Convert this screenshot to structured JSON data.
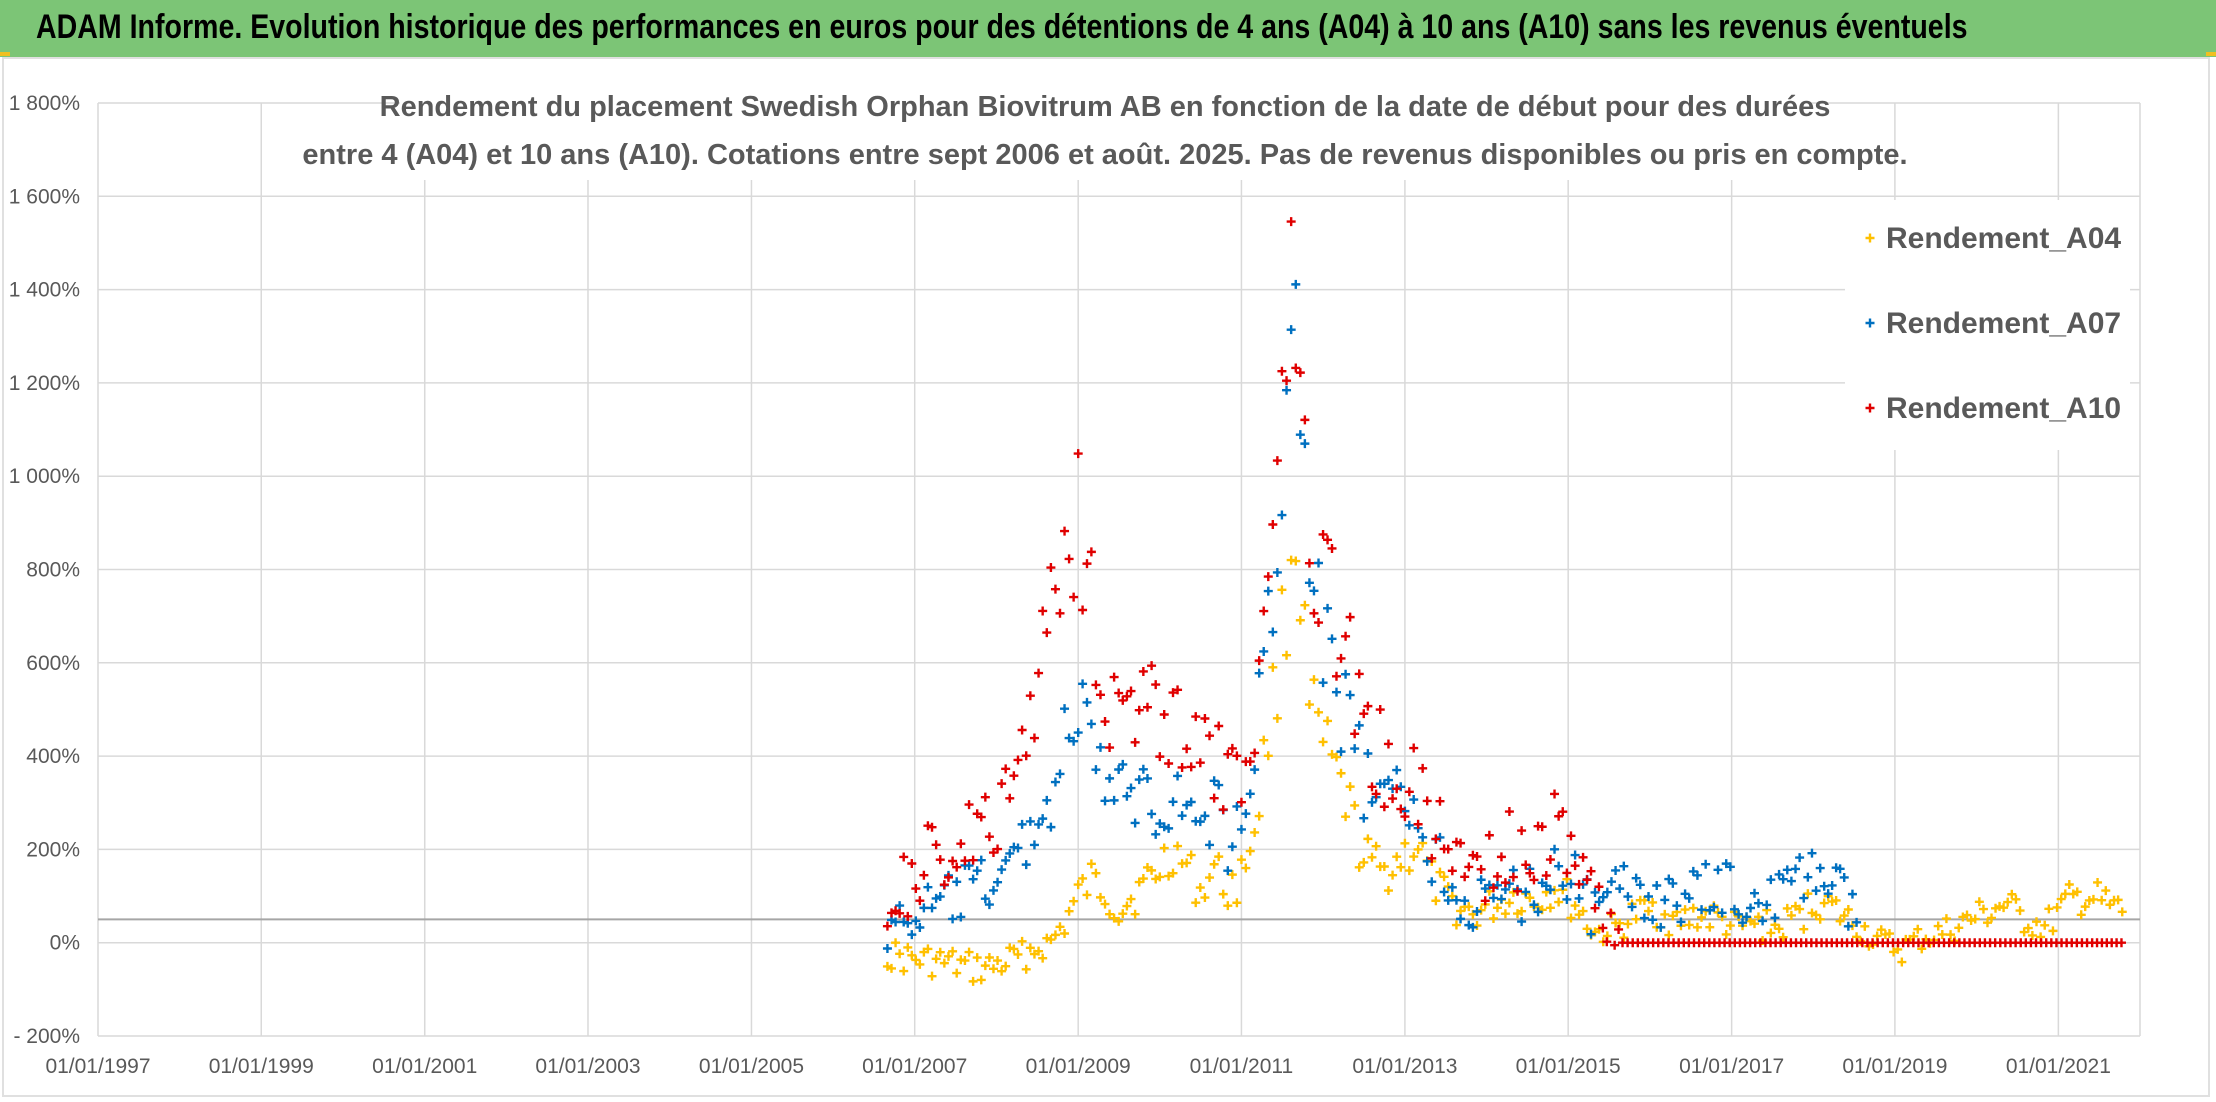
{
  "banner": {
    "title": "ADAM Informe. Evolution historique des performances en euros pour des détentions de 4 ans (A04) à 10 ans (A10) sans les revenus éventuels"
  },
  "colors": {
    "banner": "#7cc576",
    "A04": "#ffc000",
    "A07": "#0070c0",
    "A10": "#e00000",
    "grid": "#d9d9d9",
    "baseline": "#a6a6a6",
    "text": "#595959"
  },
  "chart_data": {
    "type": "scatter",
    "title_lines": [
      "Rendement du placement Swedish Orphan Biovitrum AB en fonction de la date de début pour des durées",
      "entre 4 (A04) et 10 ans (A10). Cotations entre sept 2006 et août. 2025. Pas de revenus disponibles ou pris en compte."
    ],
    "xlabel": "",
    "ylabel": "",
    "marker": "+",
    "x_ticks": [
      "01/01/1997",
      "01/01/1999",
      "01/01/2001",
      "01/01/2003",
      "01/01/2005",
      "01/01/2007",
      "01/01/2009",
      "01/01/2011",
      "01/01/2013",
      "01/01/2015",
      "01/01/2017",
      "01/01/2019",
      "01/01/2021"
    ],
    "x_range": [
      "1997-01-01",
      "2022-01-01"
    ],
    "y_ticks": [
      "- 200%",
      "0%",
      "200%",
      "400%",
      "600%",
      "800%",
      "1 000%",
      "1 200%",
      "1 400%",
      "1 600%",
      "1 800%"
    ],
    "y_range": [
      -200,
      1800
    ],
    "grid": true,
    "legend_position": "top-right",
    "series": [
      {
        "name": "Rendement_A04",
        "points": [
          [
            "2006-09-01",
            -25
          ],
          [
            "2006-12-01",
            -35
          ],
          [
            "2007-03-01",
            -40
          ],
          [
            "2007-06-01",
            -45
          ],
          [
            "2007-09-01",
            -55
          ],
          [
            "2007-12-01",
            -55
          ],
          [
            "2008-03-01",
            -40
          ],
          [
            "2008-06-01",
            -20
          ],
          [
            "2008-09-01",
            0
          ],
          [
            "2008-11-01",
            40
          ],
          [
            "2009-01-01",
            100
          ],
          [
            "2009-03-01",
            130
          ],
          [
            "2009-05-01",
            110
          ],
          [
            "2009-07-01",
            70
          ],
          [
            "2009-10-01",
            110
          ],
          [
            "2010-01-01",
            160
          ],
          [
            "2010-03-01",
            200
          ],
          [
            "2010-05-01",
            160
          ],
          [
            "2010-07-01",
            110
          ],
          [
            "2010-09-01",
            160
          ],
          [
            "2010-11-01",
            110
          ],
          [
            "2011-01-01",
            140
          ],
          [
            "2011-03-01",
            250
          ],
          [
            "2011-05-01",
            450
          ],
          [
            "2011-07-01",
            650
          ],
          [
            "2011-09-01",
            900
          ],
          [
            "2011-11-01",
            500
          ],
          [
            "2012-01-01",
            420
          ],
          [
            "2012-03-01",
            350
          ],
          [
            "2012-05-01",
            280
          ],
          [
            "2012-07-01",
            180
          ],
          [
            "2012-10-01",
            150
          ],
          [
            "2013-01-01",
            190
          ],
          [
            "2013-03-01",
            210
          ],
          [
            "2013-05-01",
            130
          ],
          [
            "2013-08-01",
            80
          ],
          [
            "2013-11-01",
            60
          ],
          [
            "2014-02-01",
            80
          ],
          [
            "2014-05-01",
            100
          ],
          [
            "2014-08-01",
            90
          ],
          [
            "2014-11-01",
            120
          ],
          [
            "2015-02-01",
            80
          ],
          [
            "2015-05-01",
            20
          ],
          [
            "2015-08-01",
            30
          ],
          [
            "2015-11-01",
            60
          ],
          [
            "2016-02-01",
            70
          ],
          [
            "2016-05-01",
            40
          ],
          [
            "2016-08-01",
            60
          ],
          [
            "2016-11-01",
            50
          ],
          [
            "2017-02-01",
            30
          ],
          [
            "2017-05-01",
            40
          ],
          [
            "2017-08-01",
            30
          ],
          [
            "2017-11-01",
            60
          ],
          [
            "2018-02-01",
            90
          ],
          [
            "2018-05-01",
            60
          ],
          [
            "2018-08-01",
            30
          ],
          [
            "2018-11-01",
            0
          ],
          [
            "2019-02-01",
            -15
          ],
          [
            "2019-05-01",
            10
          ],
          [
            "2019-08-01",
            20
          ],
          [
            "2019-11-01",
            40
          ],
          [
            "2020-02-01",
            60
          ],
          [
            "2020-05-01",
            80
          ],
          [
            "2020-08-01",
            50
          ],
          [
            "2020-11-01",
            30
          ],
          [
            "2021-02-01",
            80
          ],
          [
            "2021-05-01",
            100
          ],
          [
            "2021-08-01",
            80
          ],
          [
            "2021-11-01",
            60
          ]
        ]
      },
      {
        "name": "Rendement_A07",
        "points": [
          [
            "2006-09-01",
            30
          ],
          [
            "2006-12-01",
            45
          ],
          [
            "2007-03-01",
            70
          ],
          [
            "2007-06-01",
            90
          ],
          [
            "2007-09-01",
            110
          ],
          [
            "2007-12-01",
            130
          ],
          [
            "2008-03-01",
            160
          ],
          [
            "2008-06-01",
            240
          ],
          [
            "2008-09-01",
            310
          ],
          [
            "2008-11-01",
            420
          ],
          [
            "2009-01-01",
            500
          ],
          [
            "2009-03-01",
            400
          ],
          [
            "2009-05-01",
            360
          ],
          [
            "2009-07-01",
            300
          ],
          [
            "2009-10-01",
            330
          ],
          [
            "2010-01-01",
            300
          ],
          [
            "2010-03-01",
            330
          ],
          [
            "2010-05-01",
            280
          ],
          [
            "2010-07-01",
            250
          ],
          [
            "2010-09-01",
            290
          ],
          [
            "2010-11-01",
            230
          ],
          [
            "2011-01-01",
            220
          ],
          [
            "2011-03-01",
            400
          ],
          [
            "2011-05-01",
            700
          ],
          [
            "2011-07-01",
            1000
          ],
          [
            "2011-09-01",
            1350
          ],
          [
            "2011-11-01",
            800
          ],
          [
            "2012-01-01",
            650
          ],
          [
            "2012-03-01",
            550
          ],
          [
            "2012-05-01",
            450
          ],
          [
            "2012-07-01",
            350
          ],
          [
            "2012-10-01",
            280
          ],
          [
            "2013-01-01",
            300
          ],
          [
            "2013-03-01",
            280
          ],
          [
            "2013-05-01",
            200
          ],
          [
            "2013-08-01",
            120
          ],
          [
            "2013-11-01",
            80
          ],
          [
            "2014-02-01",
            80
          ],
          [
            "2014-05-01",
            110
          ],
          [
            "2014-08-01",
            100
          ],
          [
            "2014-11-01",
            180
          ],
          [
            "2015-02-01",
            130
          ],
          [
            "2015-05-01",
            60
          ],
          [
            "2015-08-01",
            100
          ],
          [
            "2015-11-01",
            120
          ],
          [
            "2016-02-01",
            90
          ],
          [
            "2016-05-01",
            80
          ],
          [
            "2016-08-01",
            100
          ],
          [
            "2016-11-01",
            120
          ],
          [
            "2017-02-01",
            100
          ],
          [
            "2017-05-01",
            80
          ],
          [
            "2017-08-01",
            100
          ],
          [
            "2017-11-01",
            130
          ],
          [
            "2018-02-01",
            150
          ],
          [
            "2018-05-01",
            100
          ],
          [
            "2018-08-01",
            40
          ]
        ]
      },
      {
        "name": "Rendement_A10",
        "points": [
          [
            "2006-09-01",
            100
          ],
          [
            "2006-12-01",
            120
          ],
          [
            "2007-03-01",
            170
          ],
          [
            "2007-06-01",
            190
          ],
          [
            "2007-09-01",
            220
          ],
          [
            "2007-12-01",
            240
          ],
          [
            "2008-03-01",
            300
          ],
          [
            "2008-06-01",
            500
          ],
          [
            "2008-09-01",
            750
          ],
          [
            "2008-11-01",
            850
          ],
          [
            "2009-01-01",
            950
          ],
          [
            "2009-03-01",
            750
          ],
          [
            "2009-05-01",
            550
          ],
          [
            "2009-07-01",
            500
          ],
          [
            "2009-10-01",
            500
          ],
          [
            "2010-01-01",
            480
          ],
          [
            "2010-03-01",
            500
          ],
          [
            "2010-05-01",
            400
          ],
          [
            "2010-07-01",
            380
          ],
          [
            "2010-09-01",
            400
          ],
          [
            "2010-11-01",
            330
          ],
          [
            "2011-01-01",
            320
          ],
          [
            "2011-03-01",
            450
          ],
          [
            "2011-05-01",
            900
          ],
          [
            "2011-07-01",
            1200
          ],
          [
            "2011-09-01",
            1450
          ],
          [
            "2011-11-01",
            900
          ],
          [
            "2012-01-01",
            800
          ],
          [
            "2012-03-01",
            700
          ],
          [
            "2012-05-01",
            600
          ],
          [
            "2012-07-01",
            450
          ],
          [
            "2012-10-01",
            380
          ],
          [
            "2013-01-01",
            360
          ],
          [
            "2013-03-01",
            320
          ],
          [
            "2013-05-01",
            260
          ],
          [
            "2013-08-01",
            200
          ],
          [
            "2013-11-01",
            160
          ],
          [
            "2014-02-01",
            180
          ],
          [
            "2014-05-01",
            200
          ],
          [
            "2014-08-01",
            160
          ],
          [
            "2014-11-01",
            250
          ],
          [
            "2015-02-01",
            180
          ],
          [
            "2015-05-01",
            100
          ],
          [
            "2015-09-01",
            0
          ],
          [
            "2016-06-01",
            0
          ],
          [
            "2017-06-01",
            0
          ],
          [
            "2018-06-01",
            0
          ],
          [
            "2019-06-01",
            0
          ],
          [
            "2020-06-01",
            0
          ],
          [
            "2021-06-01",
            0
          ],
          [
            "2021-11-01",
            0
          ]
        ]
      }
    ]
  }
}
